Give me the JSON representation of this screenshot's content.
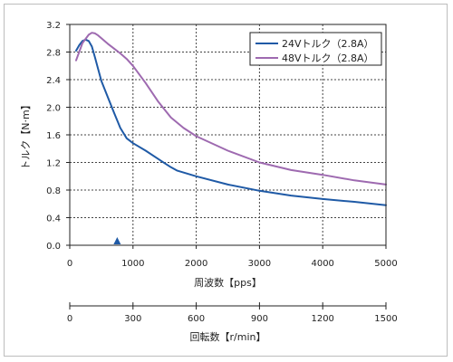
{
  "chart_data": {
    "type": "line",
    "title": "",
    "xlabel": "周波数【pps】",
    "ylabel": "トルク【N·m】",
    "secondary_xlabel": "回転数【r/min】",
    "xlim": [
      0,
      5000
    ],
    "ylim": [
      0,
      3.2
    ],
    "secondary_xlim": [
      0,
      1500
    ],
    "x_ticks": [
      0,
      1000,
      2000,
      3000,
      4000,
      5000
    ],
    "y_ticks": [
      0.0,
      0.4,
      0.8,
      1.2,
      1.6,
      2.0,
      2.4,
      2.8,
      3.2
    ],
    "y_tick_labels": [
      "0.0",
      "0.4",
      "0.8",
      "1.2",
      "1.6",
      "2.0",
      "2.4",
      "2.8",
      "3.2"
    ],
    "secondary_x_ticks": [
      0,
      300,
      600,
      900,
      1200,
      1500
    ],
    "grid": true,
    "legend_position": "top-right",
    "marker_x": 750,
    "series": [
      {
        "name": "24Vトルク（2.8A）",
        "color": "#1f5aa6",
        "x": [
          100,
          150,
          200,
          250,
          300,
          350,
          400,
          450,
          500,
          600,
          700,
          800,
          900,
          1000,
          1200,
          1400,
          1500,
          1600,
          1700,
          2000,
          2500,
          3000,
          3500,
          4000,
          4500,
          5000
        ],
        "y": [
          2.82,
          2.9,
          2.96,
          2.98,
          2.96,
          2.88,
          2.72,
          2.55,
          2.38,
          2.15,
          1.92,
          1.7,
          1.55,
          1.48,
          1.37,
          1.25,
          1.19,
          1.13,
          1.08,
          1.0,
          0.88,
          0.79,
          0.72,
          0.67,
          0.63,
          0.58
        ]
      },
      {
        "name": "48Vトルク（2.8A）",
        "color": "#9e6ab0",
        "x": [
          100,
          200,
          300,
          350,
          400,
          450,
          500,
          600,
          700,
          800,
          900,
          1000,
          1200,
          1400,
          1600,
          1800,
          2000,
          2500,
          3000,
          3500,
          4000,
          4500,
          5000
        ],
        "y": [
          2.68,
          2.93,
          3.05,
          3.08,
          3.07,
          3.04,
          3.0,
          2.92,
          2.85,
          2.78,
          2.7,
          2.6,
          2.35,
          2.08,
          1.85,
          1.7,
          1.58,
          1.37,
          1.2,
          1.09,
          1.02,
          0.94,
          0.88
        ]
      }
    ]
  }
}
